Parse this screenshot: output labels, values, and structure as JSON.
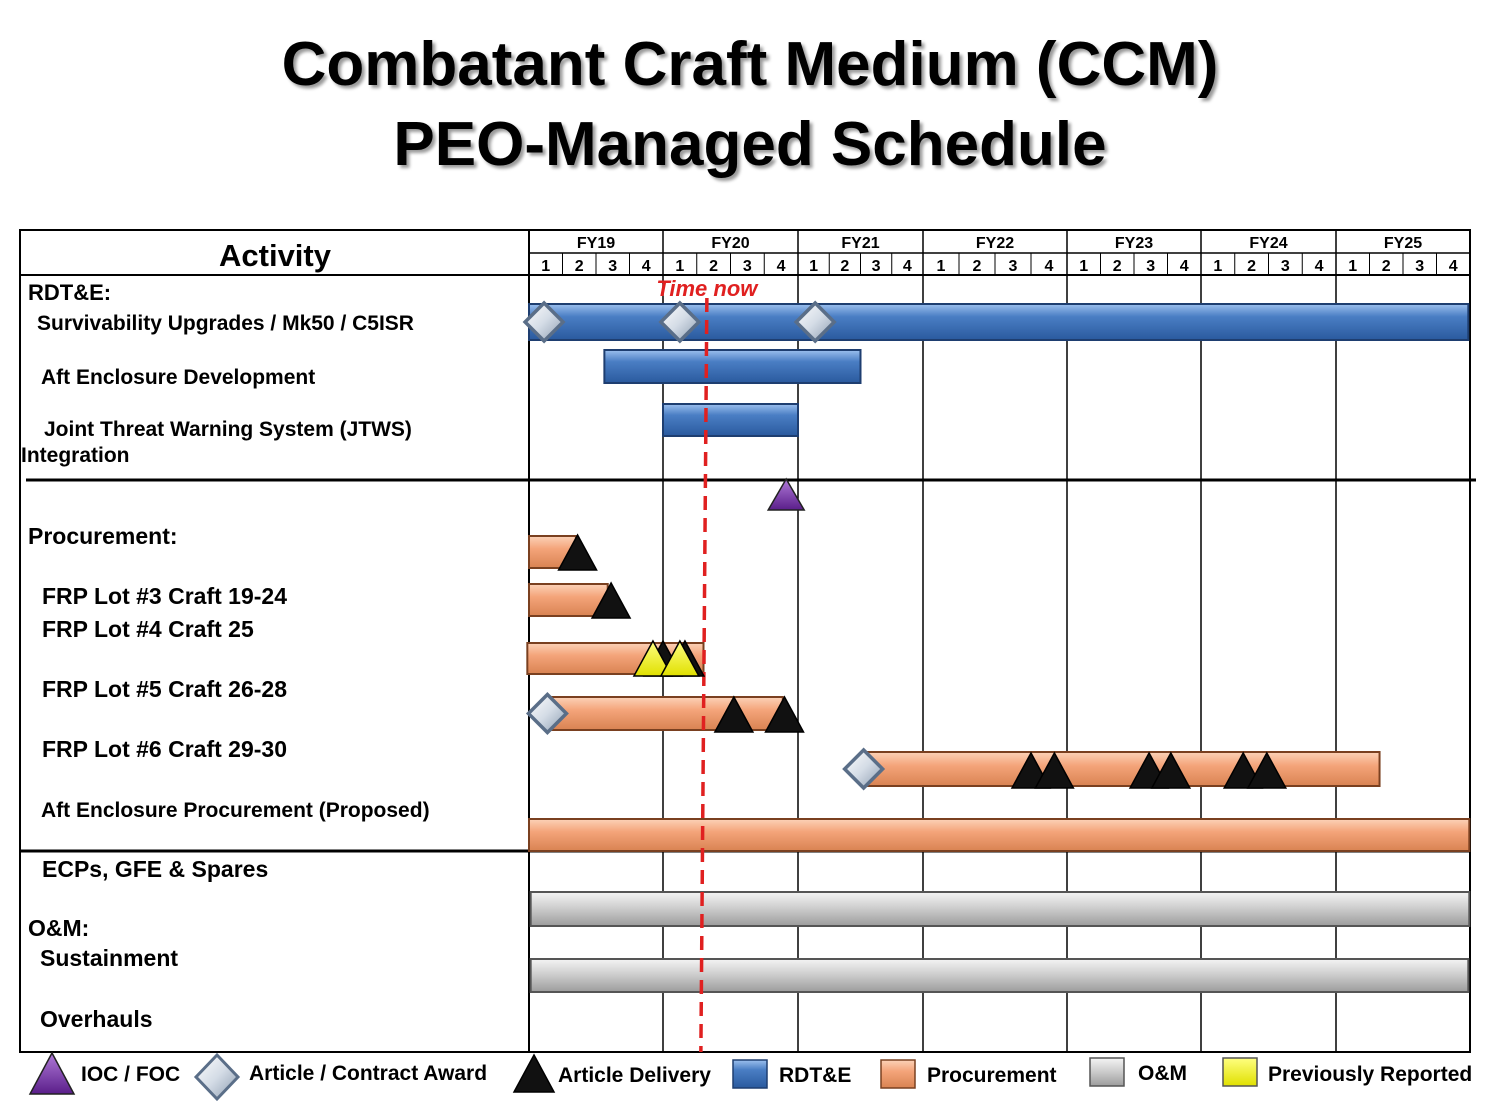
{
  "title": {
    "line1": "Combatant Craft Medium (CCM)",
    "line2": "PEO-Managed Schedule"
  },
  "header": {
    "activity_label": "Activity",
    "fiscal_years": [
      "FY19",
      "FY20",
      "FY21",
      "FY22",
      "FY23",
      "FY24",
      "FY25"
    ],
    "quarter_labels": [
      "1",
      "2",
      "3",
      "4"
    ]
  },
  "time_now": {
    "label": "Time now",
    "fy": "FY20",
    "quarter": 1.3
  },
  "sections": {
    "rdte": "RDT&E:",
    "procurement": "Procurement:",
    "om": "O&M:"
  },
  "rows": [
    {
      "key": "surv",
      "label": "Survivability Upgrades / Mk50 / C5ISR"
    },
    {
      "key": "aft_dev",
      "label": "Aft Enclosure Development"
    },
    {
      "key": "jtws1",
      "label": "Joint Threat Warning System (JTWS)"
    },
    {
      "key": "jtws2",
      "label": "Integration"
    },
    {
      "key": "lot3",
      "label": "FRP Lot #3 Craft 19-24"
    },
    {
      "key": "lot4",
      "label": "FRP Lot #4 Craft 25"
    },
    {
      "key": "lot5",
      "label": "FRP Lot #5 Craft 26-28"
    },
    {
      "key": "lot6",
      "label": "FRP Lot #6 Craft 29-30"
    },
    {
      "key": "aft_proc",
      "label": "Aft Enclosure Procurement (Proposed)"
    },
    {
      "key": "ecp",
      "label": "ECPs, GFE & Spares"
    },
    {
      "key": "sust",
      "label": "Sustainment"
    },
    {
      "key": "ovh",
      "label": "Overhauls"
    }
  ],
  "colors": {
    "rdte": "#4a7ec4",
    "procurement": "#f4a47a",
    "om": "#c8c8c8",
    "previously_reported": "#f2f200",
    "ioc_foc": "#6a2a9a",
    "time_now": "#e02020"
  },
  "bars": [
    {
      "category": "rdte",
      "start": 0.0,
      "end": 27.95
    },
    {
      "category": "rdte",
      "start": 2.25,
      "end": 10.0
    },
    {
      "category": "rdte",
      "start": 4.0,
      "end": 8.0
    },
    {
      "category": "procurement",
      "start": 0.0,
      "end": 1.4
    },
    {
      "category": "procurement",
      "start": 0.0,
      "end": 2.35
    },
    {
      "category": "procurement",
      "start": -0.05,
      "end": 5.2
    },
    {
      "category": "procurement",
      "start": 0.5,
      "end": 7.55
    },
    {
      "category": "procurement",
      "start": 10.1,
      "end": 25.3
    },
    {
      "category": "procurement",
      "start": 0.0,
      "end": 27.98
    },
    {
      "category": "om",
      "start": 0.05,
      "end": 27.98
    },
    {
      "category": "om",
      "start": 0.05,
      "end": 27.95
    }
  ],
  "milestones": [
    {
      "type": "award",
      "t": 0.45,
      "bar": 0
    },
    {
      "type": "award",
      "t": 4.5,
      "bar": 0
    },
    {
      "type": "award",
      "t": 8.55,
      "bar": 0
    },
    {
      "type": "ioc_foc",
      "t": 7.65,
      "bar": "ioc"
    },
    {
      "type": "delivery",
      "t": 1.45,
      "bar": 3
    },
    {
      "type": "delivery",
      "t": 2.45,
      "bar": 4
    },
    {
      "type": "delivery",
      "t": 4.0,
      "bar": 5
    },
    {
      "type": "delivery",
      "t": 4.65,
      "bar": 5
    },
    {
      "type": "reported",
      "t": 3.7,
      "bar": 5
    },
    {
      "type": "reported",
      "t": 4.5,
      "bar": 5
    },
    {
      "type": "award",
      "t": 0.55,
      "bar": 6
    },
    {
      "type": "delivery",
      "t": 6.1,
      "bar": 6
    },
    {
      "type": "delivery",
      "t": 7.6,
      "bar": 6
    },
    {
      "type": "award",
      "t": 10.1,
      "bar": 7
    },
    {
      "type": "delivery",
      "t": 15.0,
      "bar": 7
    },
    {
      "type": "delivery",
      "t": 15.65,
      "bar": 7
    },
    {
      "type": "delivery",
      "t": 18.45,
      "bar": 7
    },
    {
      "type": "delivery",
      "t": 19.1,
      "bar": 7
    },
    {
      "type": "delivery",
      "t": 21.25,
      "bar": 7
    },
    {
      "type": "delivery",
      "t": 21.95,
      "bar": 7
    }
  ],
  "legend": {
    "ioc_foc": "IOC / FOC",
    "award": "Article / Contract Award",
    "delivery": "Article Delivery",
    "rdte": "RDT&E",
    "procurement": "Procurement",
    "om": "O&M",
    "reported": "Previously Reported"
  }
}
